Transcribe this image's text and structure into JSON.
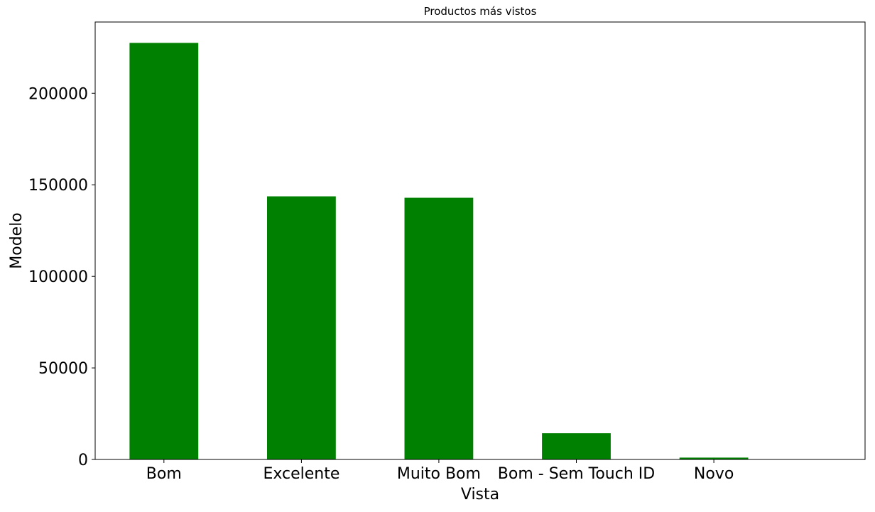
{
  "chart_data": {
    "type": "bar",
    "title": "Productos más vistos",
    "xlabel": "Vista",
    "ylabel": "Modelo",
    "categories": [
      "Bom",
      "Excelente",
      "Muito Bom",
      "Bom - Sem Touch ID",
      "Novo"
    ],
    "values": [
      227500,
      143700,
      142900,
      14300,
      1000
    ],
    "ylim": [
      0,
      238900
    ],
    "yticks": [
      0,
      50000,
      100000,
      150000,
      200000
    ],
    "ytick_labels": [
      "0",
      "50000",
      "100000",
      "150000",
      "200000"
    ],
    "bar_color": "#008000",
    "grid": false,
    "legend": false
  }
}
